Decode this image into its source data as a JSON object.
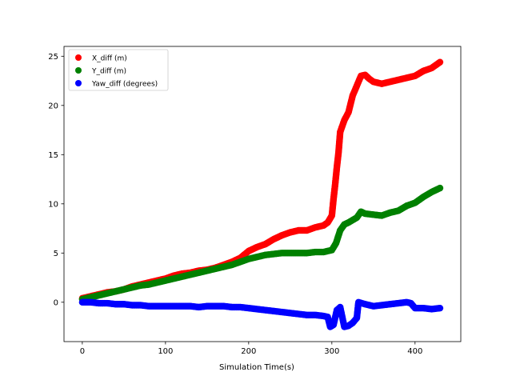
{
  "chart_data": {
    "type": "scatter",
    "title": "",
    "xlabel": "Simulation Time(s)",
    "ylabel": "",
    "xlim": [
      -22,
      455
    ],
    "ylim": [
      -4,
      26
    ],
    "xticks": [
      0,
      100,
      200,
      300,
      400
    ],
    "yticks": [
      0,
      5,
      10,
      15,
      20,
      25
    ],
    "grid": false,
    "legend_position": "upper-left",
    "series": [
      {
        "name": "X_diff (m)",
        "color": "#ff0000",
        "points": [
          [
            0,
            0.4
          ],
          [
            10,
            0.6
          ],
          [
            20,
            0.8
          ],
          [
            30,
            1.0
          ],
          [
            40,
            1.1
          ],
          [
            50,
            1.3
          ],
          [
            60,
            1.6
          ],
          [
            70,
            1.8
          ],
          [
            80,
            2.0
          ],
          [
            90,
            2.2
          ],
          [
            100,
            2.4
          ],
          [
            110,
            2.7
          ],
          [
            120,
            2.9
          ],
          [
            130,
            3.0
          ],
          [
            140,
            3.2
          ],
          [
            150,
            3.3
          ],
          [
            160,
            3.5
          ],
          [
            170,
            3.8
          ],
          [
            180,
            4.1
          ],
          [
            190,
            4.5
          ],
          [
            200,
            5.2
          ],
          [
            210,
            5.6
          ],
          [
            220,
            5.9
          ],
          [
            230,
            6.4
          ],
          [
            240,
            6.8
          ],
          [
            250,
            7.1
          ],
          [
            260,
            7.3
          ],
          [
            270,
            7.3
          ],
          [
            280,
            7.6
          ],
          [
            290,
            7.8
          ],
          [
            295,
            8.1
          ],
          [
            300,
            8.8
          ],
          [
            302,
            10.5
          ],
          [
            304,
            12.0
          ],
          [
            306,
            13.7
          ],
          [
            308,
            15.2
          ],
          [
            310,
            17.3
          ],
          [
            315,
            18.5
          ],
          [
            320,
            19.3
          ],
          [
            325,
            21.0
          ],
          [
            330,
            22.0
          ],
          [
            335,
            23.0
          ],
          [
            340,
            23.1
          ],
          [
            345,
            22.7
          ],
          [
            350,
            22.4
          ],
          [
            360,
            22.2
          ],
          [
            370,
            22.4
          ],
          [
            380,
            22.6
          ],
          [
            390,
            22.8
          ],
          [
            400,
            23.0
          ],
          [
            410,
            23.5
          ],
          [
            420,
            23.8
          ],
          [
            430,
            24.4
          ]
        ]
      },
      {
        "name": "Y_diff (m)",
        "color": "#008000",
        "points": [
          [
            0,
            0.3
          ],
          [
            10,
            0.5
          ],
          [
            20,
            0.7
          ],
          [
            30,
            0.9
          ],
          [
            40,
            1.1
          ],
          [
            50,
            1.3
          ],
          [
            60,
            1.5
          ],
          [
            70,
            1.7
          ],
          [
            80,
            1.8
          ],
          [
            90,
            2.0
          ],
          [
            100,
            2.2
          ],
          [
            110,
            2.4
          ],
          [
            120,
            2.6
          ],
          [
            130,
            2.8
          ],
          [
            140,
            3.0
          ],
          [
            150,
            3.2
          ],
          [
            160,
            3.4
          ],
          [
            170,
            3.6
          ],
          [
            180,
            3.8
          ],
          [
            190,
            4.1
          ],
          [
            200,
            4.4
          ],
          [
            210,
            4.6
          ],
          [
            220,
            4.8
          ],
          [
            230,
            4.9
          ],
          [
            240,
            5.0
          ],
          [
            250,
            5.0
          ],
          [
            260,
            5.0
          ],
          [
            270,
            5.0
          ],
          [
            280,
            5.1
          ],
          [
            290,
            5.1
          ],
          [
            300,
            5.3
          ],
          [
            305,
            6.0
          ],
          [
            310,
            7.3
          ],
          [
            315,
            7.9
          ],
          [
            320,
            8.1
          ],
          [
            330,
            8.6
          ],
          [
            335,
            9.2
          ],
          [
            340,
            9.0
          ],
          [
            350,
            8.9
          ],
          [
            360,
            8.8
          ],
          [
            370,
            9.1
          ],
          [
            380,
            9.3
          ],
          [
            390,
            9.8
          ],
          [
            400,
            10.1
          ],
          [
            410,
            10.7
          ],
          [
            420,
            11.2
          ],
          [
            430,
            11.6
          ]
        ]
      },
      {
        "name": "Yaw_diff (degrees)",
        "color": "#0000ff",
        "points": [
          [
            0,
            0.0
          ],
          [
            10,
            0.0
          ],
          [
            20,
            -0.1
          ],
          [
            30,
            -0.1
          ],
          [
            40,
            -0.2
          ],
          [
            50,
            -0.2
          ],
          [
            60,
            -0.3
          ],
          [
            70,
            -0.3
          ],
          [
            80,
            -0.4
          ],
          [
            90,
            -0.4
          ],
          [
            100,
            -0.4
          ],
          [
            110,
            -0.4
          ],
          [
            120,
            -0.4
          ],
          [
            130,
            -0.4
          ],
          [
            140,
            -0.5
          ],
          [
            150,
            -0.4
          ],
          [
            160,
            -0.4
          ],
          [
            170,
            -0.4
          ],
          [
            180,
            -0.5
          ],
          [
            190,
            -0.5
          ],
          [
            200,
            -0.6
          ],
          [
            210,
            -0.7
          ],
          [
            220,
            -0.8
          ],
          [
            230,
            -0.9
          ],
          [
            240,
            -1.0
          ],
          [
            250,
            -1.1
          ],
          [
            260,
            -1.2
          ],
          [
            270,
            -1.3
          ],
          [
            280,
            -1.3
          ],
          [
            290,
            -1.4
          ],
          [
            295,
            -1.5
          ],
          [
            298,
            -2.5
          ],
          [
            302,
            -2.3
          ],
          [
            306,
            -0.8
          ],
          [
            310,
            -0.5
          ],
          [
            315,
            -2.5
          ],
          [
            320,
            -2.4
          ],
          [
            325,
            -2.1
          ],
          [
            330,
            -1.6
          ],
          [
            332,
            0.0
          ],
          [
            340,
            -0.2
          ],
          [
            350,
            -0.4
          ],
          [
            360,
            -0.3
          ],
          [
            370,
            -0.2
          ],
          [
            380,
            -0.1
          ],
          [
            390,
            0.0
          ],
          [
            395,
            -0.1
          ],
          [
            400,
            -0.6
          ],
          [
            410,
            -0.6
          ],
          [
            420,
            -0.7
          ],
          [
            430,
            -0.6
          ]
        ]
      }
    ]
  }
}
